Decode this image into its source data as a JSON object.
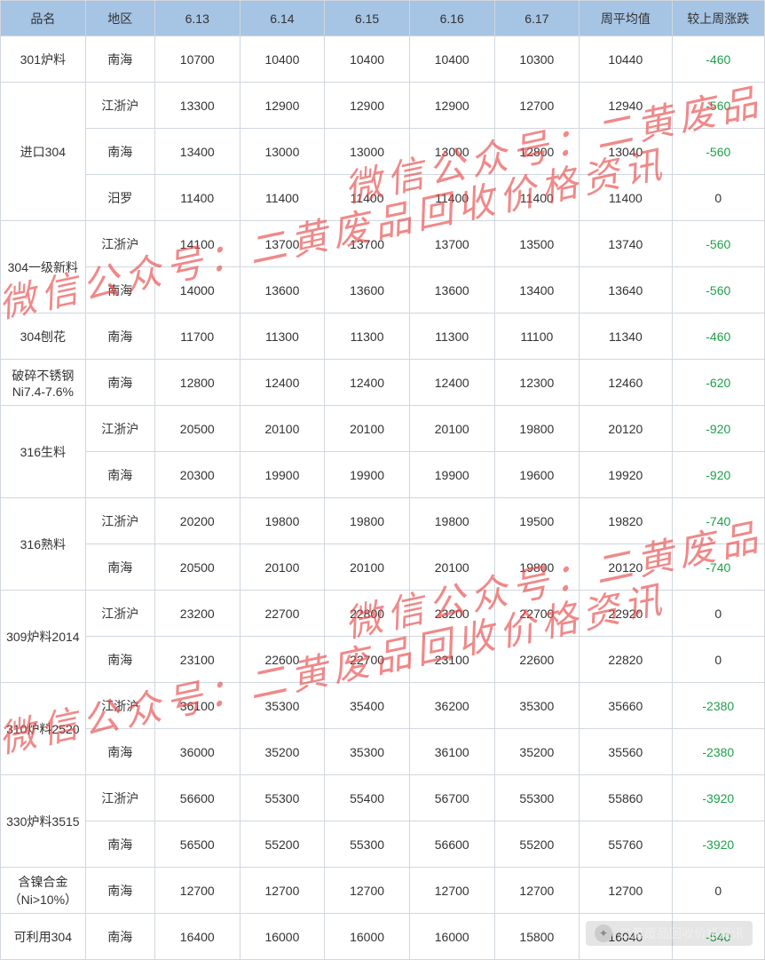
{
  "watermark_text": "微信公众号：二黄废品回收价格资讯",
  "footer": {
    "text": "二黄废品回收价格资讯",
    "icon": "wechat-icon"
  },
  "table": {
    "header_bg": "#a6c4e4",
    "border_color": "#d0d7de",
    "negative_color": "#1fa04a",
    "columns": [
      "品名",
      "地区",
      "6.13",
      "6.14",
      "6.15",
      "6.16",
      "6.17",
      "周平均值",
      "较上周涨跌"
    ],
    "groups": [
      {
        "name": "301炉料",
        "rows": [
          {
            "region": "南海",
            "d": [
              10700,
              10400,
              10400,
              10400,
              10300
            ],
            "avg": 10440,
            "chg": -460
          }
        ]
      },
      {
        "name": "进口304",
        "rows": [
          {
            "region": "江浙沪",
            "d": [
              13300,
              12900,
              12900,
              12900,
              12700
            ],
            "avg": 12940,
            "chg": -560
          },
          {
            "region": "南海",
            "d": [
              13400,
              13000,
              13000,
              13000,
              12800
            ],
            "avg": 13040,
            "chg": -560
          },
          {
            "region": "汨罗",
            "d": [
              11400,
              11400,
              11400,
              11400,
              11400
            ],
            "avg": 11400,
            "chg": 0
          }
        ]
      },
      {
        "name": "304一级新料",
        "rows": [
          {
            "region": "江浙沪",
            "d": [
              14100,
              13700,
              13700,
              13700,
              13500
            ],
            "avg": 13740,
            "chg": -560
          },
          {
            "region": "南海",
            "d": [
              14000,
              13600,
              13600,
              13600,
              13400
            ],
            "avg": 13640,
            "chg": -560
          }
        ]
      },
      {
        "name": "304刨花",
        "rows": [
          {
            "region": "南海",
            "d": [
              11700,
              11300,
              11300,
              11300,
              11100
            ],
            "avg": 11340,
            "chg": -460
          }
        ]
      },
      {
        "name": "破碎不锈钢Ni7.4-7.6%",
        "rows": [
          {
            "region": "南海",
            "d": [
              12800,
              12400,
              12400,
              12400,
              12300
            ],
            "avg": 12460,
            "chg": -620
          }
        ]
      },
      {
        "name": "316生料",
        "rows": [
          {
            "region": "江浙沪",
            "d": [
              20500,
              20100,
              20100,
              20100,
              19800
            ],
            "avg": 20120,
            "chg": -920
          },
          {
            "region": "南海",
            "d": [
              20300,
              19900,
              19900,
              19900,
              19600
            ],
            "avg": 19920,
            "chg": -920
          }
        ]
      },
      {
        "name": "316熟料",
        "rows": [
          {
            "region": "江浙沪",
            "d": [
              20200,
              19800,
              19800,
              19800,
              19500
            ],
            "avg": 19820,
            "chg": -740
          },
          {
            "region": "南海",
            "d": [
              20500,
              20100,
              20100,
              20100,
              19800
            ],
            "avg": 20120,
            "chg": -740
          }
        ]
      },
      {
        "name": "309炉料2014",
        "rows": [
          {
            "region": "江浙沪",
            "d": [
              23200,
              22700,
              22800,
              23200,
              22700
            ],
            "avg": 22920,
            "chg": 0
          },
          {
            "region": "南海",
            "d": [
              23100,
              22600,
              22700,
              23100,
              22600
            ],
            "avg": 22820,
            "chg": 0
          }
        ]
      },
      {
        "name": "310炉料2520",
        "rows": [
          {
            "region": "江浙沪",
            "d": [
              36100,
              35300,
              35400,
              36200,
              35300
            ],
            "avg": 35660,
            "chg": -2380
          },
          {
            "region": "南海",
            "d": [
              36000,
              35200,
              35300,
              36100,
              35200
            ],
            "avg": 35560,
            "chg": -2380
          }
        ]
      },
      {
        "name": "330炉料3515",
        "rows": [
          {
            "region": "江浙沪",
            "d": [
              56600,
              55300,
              55400,
              56700,
              55300
            ],
            "avg": 55860,
            "chg": -3920
          },
          {
            "region": "南海",
            "d": [
              56500,
              55200,
              55300,
              56600,
              55200
            ],
            "avg": 55760,
            "chg": -3920
          }
        ]
      },
      {
        "name": "含镍合金（Ni>10%）",
        "rows": [
          {
            "region": "南海",
            "d": [
              12700,
              12700,
              12700,
              12700,
              12700
            ],
            "avg": 12700,
            "chg": 0
          }
        ]
      },
      {
        "name": "可利用304",
        "rows": [
          {
            "region": "南海",
            "d": [
              16400,
              16000,
              16000,
              16000,
              15800
            ],
            "avg": 16040,
            "chg": -540
          }
        ]
      }
    ]
  }
}
